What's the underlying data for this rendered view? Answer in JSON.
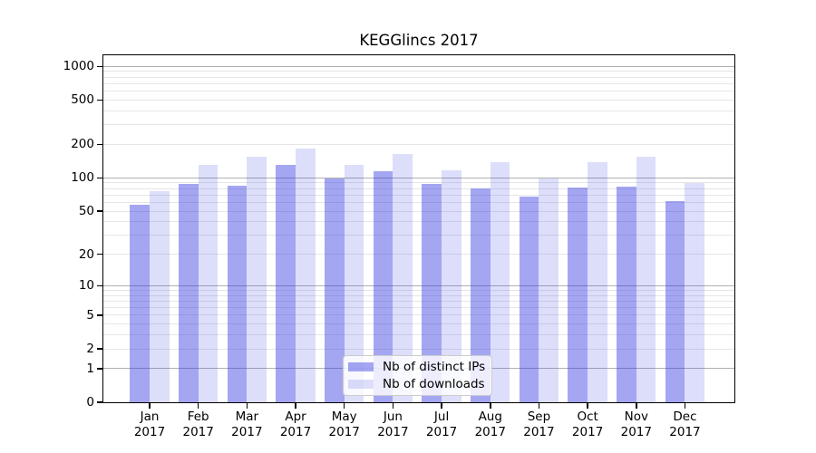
{
  "title": "KEGGlincs 2017",
  "chart_data": {
    "type": "bar",
    "title": "KEGGlincs 2017",
    "categories": [
      "Jan 2017",
      "Feb 2017",
      "Mar 2017",
      "Apr 2017",
      "May 2017",
      "Jun 2017",
      "Jul 2017",
      "Aug 2017",
      "Sep 2017",
      "Oct 2017",
      "Nov 2017",
      "Dec 2017"
    ],
    "series": [
      {
        "name": "Nb of distinct IPs",
        "color": "#a4a6f3",
        "rgba": "rgba(44,48,226,0.43)",
        "values": [
          57,
          88,
          85,
          130,
          98,
          114,
          88,
          81,
          68,
          82,
          83,
          62
        ]
      },
      {
        "name": "Nb of downloads",
        "color": "#dcddfa",
        "rgba": "rgba(44,48,226,0.16)",
        "values": [
          76,
          130,
          155,
          183,
          131,
          165,
          117,
          139,
          98,
          139,
          154,
          90
        ]
      }
    ],
    "yscale": "log1p",
    "yticks": [
      0,
      1,
      2,
      5,
      10,
      20,
      50,
      100,
      200,
      500,
      1000
    ],
    "yminor": [
      2,
      3,
      4,
      5,
      6,
      7,
      8,
      9,
      20,
      30,
      40,
      50,
      60,
      70,
      80,
      90,
      200,
      300,
      400,
      500,
      600,
      700,
      800,
      900
    ],
    "grid": {
      "major_color": "#b0b0b0",
      "minor_color": "#e6e6e6"
    },
    "legend_position": "lower center"
  }
}
